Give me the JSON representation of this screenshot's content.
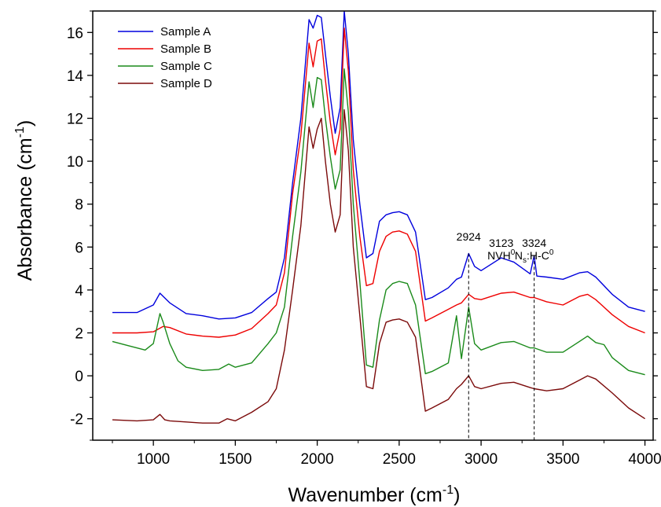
{
  "chart_data": {
    "type": "line",
    "xlabel": "Wavenumber (cm",
    "xlabel_sup": "-1",
    "xlabel_end": ")",
    "ylabel": "Absorbance (cm",
    "ylabel_sup": "-1",
    "ylabel_end": ")",
    "xlim": [
      630,
      4050
    ],
    "ylim": [
      -3,
      17
    ],
    "xticks": [
      "1000",
      "1500",
      "2000",
      "2500",
      "3000",
      "3500",
      "4000"
    ],
    "xtick_values": [
      1000,
      1500,
      2000,
      2500,
      3000,
      3500,
      4000
    ],
    "yticks": [
      "-2",
      "0",
      "2",
      "4",
      "6",
      "8",
      "10",
      "12",
      "14",
      "16"
    ],
    "ytick_values": [
      -2,
      0,
      2,
      4,
      6,
      8,
      10,
      12,
      14,
      16
    ],
    "legend_position": "top-left",
    "series": [
      {
        "name": "Sample A",
        "color": "#0000dd",
        "x": [
          750,
          900,
          1000,
          1040,
          1100,
          1200,
          1300,
          1400,
          1500,
          1600,
          1700,
          1750,
          1800,
          1850,
          1900,
          1950,
          1975,
          2000,
          2025,
          2050,
          2080,
          2110,
          2140,
          2165,
          2190,
          2220,
          2260,
          2300,
          2340,
          2380,
          2420,
          2460,
          2500,
          2550,
          2600,
          2660,
          2700,
          2800,
          2850,
          2880,
          2924,
          2960,
          3000,
          3123,
          3200,
          3300,
          3324,
          3340,
          3400,
          3500,
          3600,
          3650,
          3700,
          3800,
          3900,
          4000
        ],
        "y": [
          2.95,
          2.95,
          3.3,
          3.85,
          3.4,
          2.9,
          2.8,
          2.65,
          2.7,
          2.95,
          3.6,
          3.9,
          5.5,
          9,
          12,
          16.6,
          16.2,
          16.8,
          16.7,
          15,
          13,
          11.3,
          12.5,
          17,
          15,
          11,
          8,
          5.5,
          5.7,
          7.2,
          7.5,
          7.6,
          7.65,
          7.5,
          6.7,
          3.55,
          3.65,
          4.1,
          4.5,
          4.6,
          5.7,
          5.1,
          4.9,
          5.5,
          5.3,
          4.75,
          5.6,
          4.65,
          4.6,
          4.5,
          4.8,
          4.85,
          4.6,
          3.8,
          3.2,
          3.0
        ]
      },
      {
        "name": "Sample B",
        "color": "#ee0000",
        "x": [
          750,
          900,
          1000,
          1060,
          1100,
          1200,
          1300,
          1400,
          1500,
          1600,
          1700,
          1750,
          1800,
          1850,
          1900,
          1950,
          1975,
          2000,
          2025,
          2050,
          2080,
          2110,
          2140,
          2165,
          2190,
          2220,
          2260,
          2300,
          2340,
          2380,
          2420,
          2460,
          2500,
          2550,
          2600,
          2660,
          2700,
          2800,
          2850,
          2880,
          2924,
          2960,
          3000,
          3123,
          3200,
          3300,
          3324,
          3400,
          3500,
          3600,
          3650,
          3700,
          3800,
          3900,
          4000
        ],
        "y": [
          2.0,
          2.0,
          2.05,
          2.3,
          2.25,
          1.95,
          1.85,
          1.8,
          1.9,
          2.2,
          2.9,
          3.3,
          4.8,
          8.5,
          11.2,
          15.5,
          14.4,
          15.6,
          15.7,
          13.8,
          11.8,
          10.3,
          11.5,
          16.2,
          14.2,
          9.6,
          6.5,
          4.2,
          4.3,
          5.8,
          6.5,
          6.7,
          6.75,
          6.6,
          5.8,
          2.55,
          2.7,
          3.1,
          3.3,
          3.4,
          3.8,
          3.6,
          3.55,
          3.85,
          3.9,
          3.65,
          3.65,
          3.45,
          3.3,
          3.7,
          3.8,
          3.55,
          2.85,
          2.3,
          2.0
        ]
      },
      {
        "name": "Sample C",
        "color": "#1a8a1a",
        "x": [
          750,
          850,
          950,
          1000,
          1040,
          1060,
          1100,
          1150,
          1200,
          1300,
          1400,
          1460,
          1500,
          1600,
          1700,
          1750,
          1800,
          1850,
          1900,
          1950,
          1975,
          2000,
          2025,
          2050,
          2080,
          2110,
          2140,
          2165,
          2190,
          2220,
          2260,
          2300,
          2340,
          2380,
          2420,
          2460,
          2500,
          2550,
          2600,
          2660,
          2700,
          2800,
          2850,
          2880,
          2924,
          2960,
          3000,
          3123,
          3200,
          3300,
          3324,
          3400,
          3500,
          3600,
          3650,
          3700,
          3750,
          3800,
          3900,
          4000
        ],
        "y": [
          1.6,
          1.4,
          1.2,
          1.5,
          2.9,
          2.5,
          1.5,
          0.7,
          0.4,
          0.25,
          0.3,
          0.55,
          0.4,
          0.6,
          1.5,
          2.0,
          3.2,
          6.5,
          9.5,
          13.7,
          12.5,
          13.9,
          13.8,
          12.0,
          10.2,
          8.7,
          9.6,
          14.3,
          12.3,
          8.0,
          4.4,
          0.5,
          0.4,
          2.6,
          4.0,
          4.3,
          4.4,
          4.3,
          3.3,
          0.1,
          0.2,
          0.6,
          2.8,
          0.8,
          3.2,
          1.5,
          1.2,
          1.55,
          1.6,
          1.3,
          1.3,
          1.1,
          1.1,
          1.6,
          1.85,
          1.55,
          1.45,
          0.85,
          0.25,
          0.05
        ]
      },
      {
        "name": "Sample D",
        "color": "#7b0a0a",
        "x": [
          750,
          900,
          1000,
          1040,
          1070,
          1100,
          1200,
          1300,
          1400,
          1450,
          1500,
          1600,
          1700,
          1750,
          1800,
          1850,
          1900,
          1950,
          1975,
          2000,
          2025,
          2050,
          2080,
          2110,
          2140,
          2165,
          2190,
          2220,
          2260,
          2300,
          2340,
          2380,
          2420,
          2460,
          2500,
          2550,
          2600,
          2660,
          2700,
          2800,
          2850,
          2880,
          2924,
          2960,
          3000,
          3123,
          3200,
          3300,
          3324,
          3400,
          3500,
          3600,
          3650,
          3700,
          3800,
          3900,
          4000
        ],
        "y": [
          -2.05,
          -2.1,
          -2.05,
          -1.8,
          -2.05,
          -2.1,
          -2.15,
          -2.2,
          -2.2,
          -2.0,
          -2.1,
          -1.7,
          -1.2,
          -0.6,
          1.2,
          4.0,
          7.0,
          11.6,
          10.6,
          11.5,
          12.0,
          10.0,
          8.0,
          6.7,
          7.5,
          12.4,
          10.5,
          6.0,
          2.8,
          -0.5,
          -0.6,
          1.5,
          2.5,
          2.6,
          2.65,
          2.5,
          1.8,
          -1.65,
          -1.5,
          -1.1,
          -0.6,
          -0.4,
          0.0,
          -0.5,
          -0.6,
          -0.35,
          -0.3,
          -0.55,
          -0.6,
          -0.7,
          -0.6,
          -0.2,
          0.0,
          -0.15,
          -0.8,
          -1.5,
          -2.0
        ]
      }
    ],
    "annotations": [
      {
        "line1": "2924",
        "line2": "",
        "x": 2924,
        "y": 5.8
      },
      {
        "line1": "3123",
        "line2": "NVH",
        "line2_sup": "0",
        "x": 3123,
        "y": 5.5
      },
      {
        "line1": "3324",
        "line2": "N",
        "line2_sub": "s",
        "line2_rest": ":H-C",
        "line2_sup": "0",
        "x": 3324,
        "y": 5.5
      }
    ],
    "vlines": [
      2924,
      3324
    ],
    "grid": false
  }
}
